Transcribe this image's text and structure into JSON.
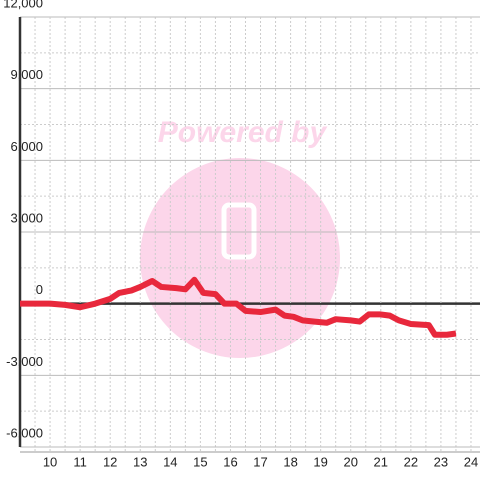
{
  "chart_data": {
    "type": "line",
    "watermark": "Powered by",
    "x": [
      9,
      9.5,
      10,
      10.5,
      11,
      11.5,
      12,
      12.3,
      12.7,
      13,
      13.4,
      13.7,
      14.2,
      14.5,
      14.8,
      15.1,
      15.5,
      15.8,
      16.2,
      16.5,
      17,
      17.5,
      17.8,
      18.1,
      18.4,
      18.8,
      19.2,
      19.5,
      20,
      20.3,
      20.6,
      21,
      21.3,
      21.6,
      22,
      22.6,
      22.8,
      23.2,
      23.5
    ],
    "series": [
      {
        "color": "#e8283c",
        "values": [
          0,
          0,
          0,
          -50,
          -150,
          0,
          200,
          450,
          550,
          700,
          950,
          700,
          650,
          600,
          1000,
          450,
          400,
          0,
          0,
          -300,
          -350,
          -250,
          -500,
          -550,
          -700,
          -750,
          -800,
          -650,
          -700,
          -750,
          -450,
          -450,
          -500,
          -700,
          -850,
          -900,
          -1300,
          -1300,
          -1250
        ]
      }
    ],
    "xlim": [
      9,
      24.3
    ],
    "xticks": [
      10,
      11,
      12,
      13,
      14,
      15,
      16,
      17,
      18,
      19,
      20,
      21,
      22,
      23,
      24
    ],
    "ylim": [
      -6000,
      12000
    ],
    "yticks": [
      {
        "value": -6000,
        "label": "-6,000"
      },
      {
        "value": -3000,
        "label": "-3,000"
      },
      0,
      {
        "value": 3000,
        "label": "3,000"
      },
      {
        "value": 6000,
        "label": "6,000"
      },
      {
        "value": 9000,
        "label": "9,000"
      },
      {
        "value": 12000,
        "label": "12,000"
      }
    ],
    "grid": true
  }
}
